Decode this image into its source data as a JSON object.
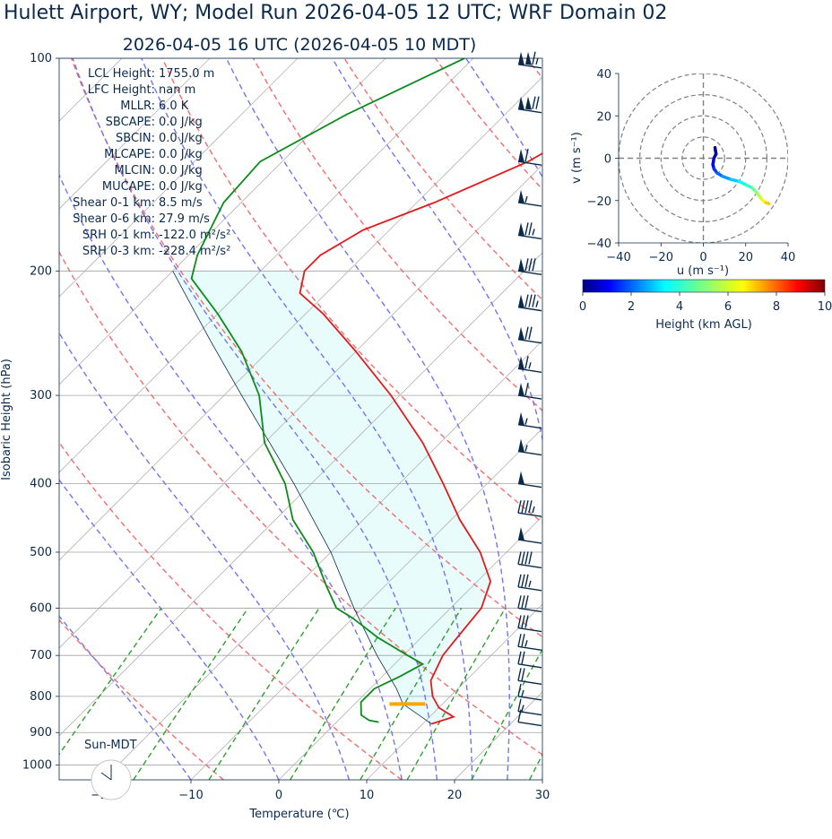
{
  "title": "Hulett Airport, WY; Model Run 2026-04-05 12 UTC; WRF Domain 02",
  "subtitle": "2026-04-05 16 UTC  (2026-04-05 10 MDT)",
  "stats": [
    {
      "label": "LCL Height:",
      "value": "1755.0 m"
    },
    {
      "label": "LFC Height:",
      "value": "nan m"
    },
    {
      "label": "MLLR:",
      "value": "6.0 K"
    },
    {
      "label": "SBCAPE:",
      "value": "0.0 J/kg"
    },
    {
      "label": "SBCIN:",
      "value": "0.0 J/kg"
    },
    {
      "label": "MLCAPE:",
      "value": "0.0 J/kg"
    },
    {
      "label": "MLCIN:",
      "value": "0.0 J/kg"
    },
    {
      "label": "MUCAPE:",
      "value": "0.0 J/kg"
    },
    {
      "label": "Shear 0-1 km:",
      "value": "8.5 m/s"
    },
    {
      "label": "Shear 0-6 km:",
      "value": "27.9 m/s"
    },
    {
      "label": "SRH 0-1 km:",
      "value": "-122.0 m²/s²"
    },
    {
      "label": "SRH 0-3 km:",
      "value": "-228.4 m²/s²"
    }
  ],
  "sun_label": "Sun-MDT",
  "chart_data": [
    {
      "type": "line",
      "name": "skew-T log-p",
      "xlabel": "Temperature (℃)",
      "ylabel": "Isobaric Height (hPa)",
      "xlim": [
        -25,
        30
      ],
      "ylim": [
        1050,
        100
      ],
      "y_scale": "log",
      "skew": "45 degrees",
      "x_ticks": [
        "−20",
        "−10",
        "0",
        "10",
        "20",
        "30"
      ],
      "y_ticks": [
        1000,
        900,
        800,
        700,
        600,
        500,
        400,
        300,
        200,
        100
      ],
      "grid": true,
      "colors": {
        "temperature": "#e31a1c",
        "dewpoint": "#0c8a1c",
        "dry_adiabat": "#f26d6d",
        "moist_adiabat": "#7474f2",
        "mixing_ratio": "#2ca02c",
        "cape_shading": "#e9fcfc",
        "barbs": "#0b2a4a",
        "lcl_marker": "#ffa500"
      },
      "temperature": [
        [
          875,
          11.0
        ],
        [
          855,
          12.7
        ],
        [
          830,
          10.0
        ],
        [
          800,
          8.0
        ],
        [
          760,
          6.0
        ],
        [
          700,
          4.5
        ],
        [
          650,
          4.0
        ],
        [
          600,
          3.5
        ],
        [
          550,
          1.5
        ],
        [
          500,
          -3.0
        ],
        [
          450,
          -9.0
        ],
        [
          400,
          -15.0
        ],
        [
          350,
          -22.0
        ],
        [
          300,
          -31.0
        ],
        [
          260,
          -40.0
        ],
        [
          230,
          -48.0
        ],
        [
          215,
          -53.0
        ],
        [
          200,
          -55.0
        ],
        [
          190,
          -55.0
        ],
        [
          175,
          -53.0
        ],
        [
          160,
          -48.0
        ],
        [
          140,
          -42.0
        ],
        [
          120,
          -38.0
        ],
        [
          100,
          -36.0
        ]
      ],
      "dewpoint": [
        [
          870,
          4.8
        ],
        [
          865,
          3.5
        ],
        [
          850,
          2.0
        ],
        [
          815,
          0.5
        ],
        [
          780,
          0.5
        ],
        [
          750,
          2.0
        ],
        [
          720,
          3.2
        ],
        [
          700,
          0.5
        ],
        [
          660,
          -5.0
        ],
        [
          620,
          -10.0
        ],
        [
          600,
          -13.0
        ],
        [
          560,
          -16.5
        ],
        [
          500,
          -22.0
        ],
        [
          450,
          -28.0
        ],
        [
          400,
          -33.0
        ],
        [
          350,
          -40.0
        ],
        [
          300,
          -46.0
        ],
        [
          260,
          -53.0
        ],
        [
          230,
          -60.0
        ],
        [
          205,
          -67.0
        ],
        [
          190,
          -69.0
        ],
        [
          160,
          -72.0
        ],
        [
          140,
          -72.5
        ],
        [
          120,
          -68.0
        ],
        [
          100,
          -61.0
        ]
      ],
      "parcel_profile": [
        [
          875,
          11.0
        ],
        [
          820,
          5.5
        ],
        [
          780,
          3.0
        ],
        [
          700,
          -3.0
        ],
        [
          600,
          -11.0
        ],
        [
          500,
          -20.0
        ],
        [
          400,
          -32.0
        ],
        [
          300,
          -48.0
        ],
        [
          250,
          -58.0
        ],
        [
          200,
          -70.0
        ]
      ],
      "lcl": {
        "pressure": 820,
        "temperature": 6.0
      },
      "wind_barbs": [
        {
          "p": 102,
          "speed_kt": 115
        },
        {
          "p": 118,
          "speed_kt": 120
        },
        {
          "p": 140,
          "speed_kt": 60
        },
        {
          "p": 160,
          "speed_kt": 55
        },
        {
          "p": 178,
          "speed_kt": 75
        },
        {
          "p": 200,
          "speed_kt": 80
        },
        {
          "p": 225,
          "speed_kt": 85
        },
        {
          "p": 250,
          "speed_kt": 70
        },
        {
          "p": 275,
          "speed_kt": 65
        },
        {
          "p": 300,
          "speed_kt": 60
        },
        {
          "p": 330,
          "speed_kt": 55
        },
        {
          "p": 360,
          "speed_kt": 55
        },
        {
          "p": 400,
          "speed_kt": 50
        },
        {
          "p": 440,
          "speed_kt": 45
        },
        {
          "p": 480,
          "speed_kt": 50
        },
        {
          "p": 520,
          "speed_kt": 40
        },
        {
          "p": 560,
          "speed_kt": 35
        },
        {
          "p": 600,
          "speed_kt": 30
        },
        {
          "p": 640,
          "speed_kt": 30
        },
        {
          "p": 680,
          "speed_kt": 25
        },
        {
          "p": 720,
          "speed_kt": 20
        },
        {
          "p": 760,
          "speed_kt": 20
        },
        {
          "p": 800,
          "speed_kt": 15
        },
        {
          "p": 840,
          "speed_kt": 15
        },
        {
          "p": 870,
          "speed_kt": 10
        }
      ]
    },
    {
      "type": "line",
      "name": "hodograph",
      "xlabel": "u (m s⁻¹)",
      "ylabel": "v (m s⁻¹)",
      "xlim": [
        -40,
        40
      ],
      "ylim": [
        -40,
        40
      ],
      "x_ticks": [
        "−40",
        "−20",
        "0",
        "20",
        "40"
      ],
      "y_ticks": [
        "40",
        "20",
        "0",
        "−20",
        "−40"
      ],
      "rings": [
        10,
        20,
        30,
        40
      ],
      "u": [
        5.5,
        6.0,
        5.0,
        4.5,
        5.0,
        6.5,
        9.0,
        13.0,
        17.0,
        20.0,
        23.0,
        25.0,
        26.5,
        28.0,
        29.5,
        31.0
      ],
      "v": [
        5.0,
        2.0,
        0.0,
        -3.0,
        -5.0,
        -7.0,
        -8.5,
        -10.0,
        -11.0,
        -12.5,
        -14.0,
        -16.0,
        -18.0,
        -20.0,
        -21.0,
        -21.5
      ],
      "height_km": [
        0.0,
        0.3,
        0.6,
        1.0,
        1.5,
        2.0,
        2.5,
        3.0,
        3.5,
        4.0,
        4.5,
        5.0,
        5.5,
        6.0,
        6.5,
        7.0
      ]
    },
    {
      "type": "heatmap",
      "name": "colorbar",
      "label": "Height (km AGL)",
      "range": [
        0,
        10
      ],
      "ticks": [
        "0",
        "2",
        "4",
        "6",
        "8",
        "10"
      ],
      "colormap": "jet"
    }
  ]
}
